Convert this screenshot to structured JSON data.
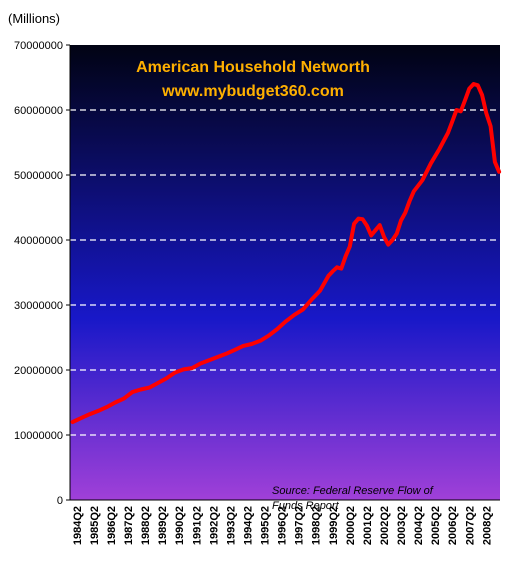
{
  "chart_data": {
    "type": "line",
    "unit_label": "(Millions)",
    "title": "American Household Networth",
    "subtitle": "www.mybudget360.com",
    "source_line1": "Source:  Federal Reserve Flow of",
    "source_line2": "Funds Report",
    "ylim": [
      0,
      70000000
    ],
    "yticks": [
      "0",
      "10000000",
      "20000000",
      "30000000",
      "40000000",
      "50000000",
      "60000000",
      "70000000"
    ],
    "xticks": [
      "1984Q2",
      "1985Q2",
      "1986Q2",
      "1987Q2",
      "1988Q2",
      "1989Q2",
      "1990Q2",
      "1991Q2",
      "1992Q2",
      "1993Q2",
      "1994Q2",
      "1995Q2",
      "1996Q2",
      "1997Q2",
      "1998Q2",
      "1999Q2",
      "2000Q2",
      "2001Q2",
      "2002Q2",
      "2003Q2",
      "2004Q2",
      "2005Q2",
      "2006Q2",
      "2007Q2",
      "2008Q2"
    ],
    "grid": true,
    "series": [
      {
        "color": "#ff0000",
        "points": [
          [
            1984.0,
            12000000
          ],
          [
            1984.5,
            12600000
          ],
          [
            1985.0,
            13200000
          ],
          [
            1985.5,
            13700000
          ],
          [
            1986.0,
            14300000
          ],
          [
            1986.5,
            15000000
          ],
          [
            1987.0,
            15600000
          ],
          [
            1987.5,
            16600000
          ],
          [
            1988.0,
            17000000
          ],
          [
            1988.5,
            17300000
          ],
          [
            1989.0,
            18000000
          ],
          [
            1989.5,
            18700000
          ],
          [
            1990.0,
            19600000
          ],
          [
            1990.5,
            20100000
          ],
          [
            1991.0,
            20300000
          ],
          [
            1991.5,
            21000000
          ],
          [
            1992.0,
            21500000
          ],
          [
            1992.5,
            22000000
          ],
          [
            1993.0,
            22500000
          ],
          [
            1993.5,
            23100000
          ],
          [
            1994.0,
            23700000
          ],
          [
            1994.5,
            24000000
          ],
          [
            1995.0,
            24500000
          ],
          [
            1995.5,
            25300000
          ],
          [
            1996.0,
            26300000
          ],
          [
            1996.5,
            27500000
          ],
          [
            1997.0,
            28500000
          ],
          [
            1997.5,
            29300000
          ],
          [
            1998.0,
            30800000
          ],
          [
            1998.5,
            32200000
          ],
          [
            1999.0,
            34500000
          ],
          [
            1999.25,
            35200000
          ],
          [
            1999.5,
            35800000
          ],
          [
            1999.75,
            35600000
          ],
          [
            2000.0,
            37500000
          ],
          [
            2000.25,
            39000000
          ],
          [
            2000.5,
            42500000
          ],
          [
            2000.75,
            43300000
          ],
          [
            2001.0,
            43200000
          ],
          [
            2001.25,
            42200000
          ],
          [
            2001.5,
            40700000
          ],
          [
            2001.75,
            41500000
          ],
          [
            2002.0,
            42300000
          ],
          [
            2002.25,
            40500000
          ],
          [
            2002.5,
            39300000
          ],
          [
            2002.75,
            40000000
          ],
          [
            2003.0,
            41000000
          ],
          [
            2003.25,
            43000000
          ],
          [
            2003.5,
            44200000
          ],
          [
            2003.75,
            46000000
          ],
          [
            2004.0,
            47500000
          ],
          [
            2004.5,
            49200000
          ],
          [
            2005.0,
            51800000
          ],
          [
            2005.5,
            54000000
          ],
          [
            2006.0,
            56500000
          ],
          [
            2006.25,
            58200000
          ],
          [
            2006.5,
            60000000
          ],
          [
            2006.75,
            59800000
          ],
          [
            2007.0,
            61500000
          ],
          [
            2007.25,
            63300000
          ],
          [
            2007.5,
            64000000
          ],
          [
            2007.75,
            63800000
          ],
          [
            2008.0,
            62300000
          ],
          [
            2008.25,
            59500000
          ],
          [
            2008.5,
            57500000
          ],
          [
            2008.75,
            52000000
          ],
          [
            2009.0,
            50500000
          ]
        ]
      }
    ]
  },
  "colors": {
    "plot_top": "#010313",
    "plot_mid": "#1818c8",
    "plot_bottom": "#a040d8",
    "line": "#ff0000",
    "title": "#ffb000",
    "grid": "#ffffff"
  }
}
